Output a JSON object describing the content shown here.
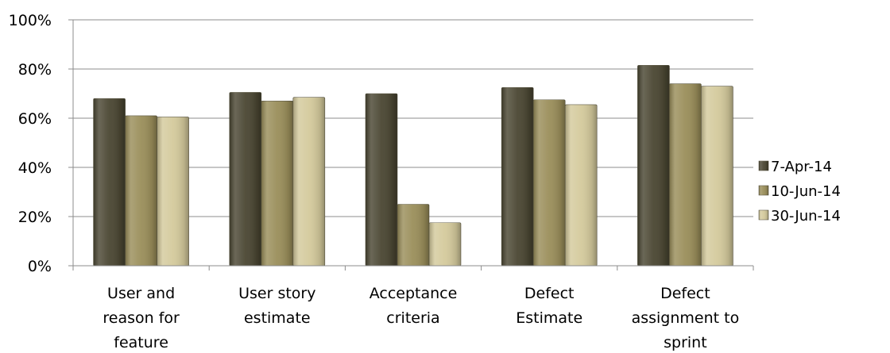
{
  "chart_data": {
    "type": "bar",
    "categories": [
      [
        "User and",
        "reason for",
        "feature"
      ],
      [
        "User story",
        "estimate"
      ],
      [
        "Acceptance",
        "criteria"
      ],
      [
        "Defect",
        "Estimate"
      ],
      [
        "Defect",
        "assignment to",
        "sprint"
      ]
    ],
    "series": [
      {
        "name": "7-Apr-14",
        "color": "#4a4632",
        "values": [
          68,
          70.5,
          70,
          72.5,
          81.5
        ]
      },
      {
        "name": "10-Jun-14",
        "color": "#9a8e5a",
        "values": [
          61,
          67,
          25,
          67.5,
          74
        ]
      },
      {
        "name": "30-Jun-14",
        "color": "#d4ca9c",
        "values": [
          60.5,
          68.5,
          17.5,
          65.5,
          73
        ]
      }
    ],
    "yticks": [
      "0%",
      "20%",
      "40%",
      "60%",
      "80%",
      "100%"
    ],
    "ylim": [
      0,
      100
    ],
    "grid": true,
    "legend_position": "right"
  }
}
